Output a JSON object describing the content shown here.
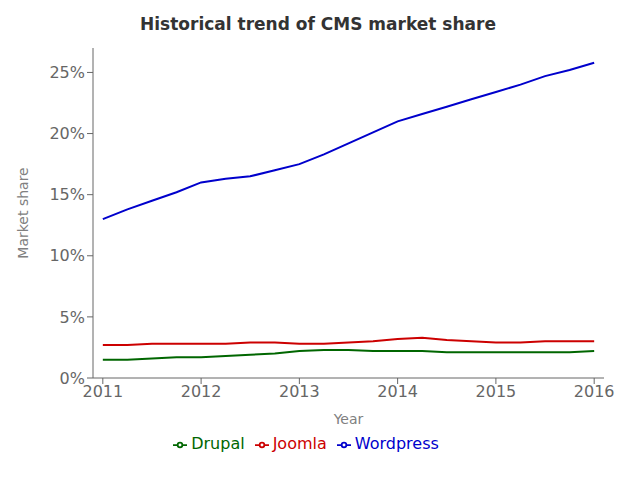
{
  "chart_data": {
    "type": "line",
    "title": "Historical trend of CMS market share",
    "xlabel": "Year",
    "ylabel": "Market share",
    "x": [
      2011,
      2011.25,
      2011.5,
      2011.75,
      2012,
      2012.25,
      2012.5,
      2012.75,
      2013,
      2013.25,
      2013.5,
      2013.75,
      2014,
      2014.25,
      2014.5,
      2014.75,
      2015,
      2015.25,
      2015.5,
      2015.75,
      2016
    ],
    "series": [
      {
        "name": "Wordpress",
        "color": "#0000cc",
        "values": [
          0.13,
          0.138,
          0.145,
          0.152,
          0.16,
          0.163,
          0.165,
          0.17,
          0.175,
          0.183,
          0.192,
          0.201,
          0.21,
          0.216,
          0.222,
          0.228,
          0.234,
          0.24,
          0.247,
          0.252,
          0.258
        ]
      },
      {
        "name": "Joomla",
        "color": "#cc0000",
        "values": [
          0.027,
          0.027,
          0.028,
          0.028,
          0.028,
          0.028,
          0.029,
          0.029,
          0.028,
          0.028,
          0.029,
          0.03,
          0.032,
          0.033,
          0.031,
          0.03,
          0.029,
          0.029,
          0.03,
          0.03,
          0.03
        ]
      },
      {
        "name": "Drupal",
        "color": "#006600",
        "values": [
          0.015,
          0.015,
          0.016,
          0.017,
          0.017,
          0.018,
          0.019,
          0.02,
          0.022,
          0.023,
          0.023,
          0.022,
          0.022,
          0.022,
          0.021,
          0.021,
          0.021,
          0.021,
          0.021,
          0.021,
          0.022
        ]
      }
    ],
    "xlim": [
      2010.9,
      2016.1
    ],
    "xticks": [
      2011,
      2012,
      2013,
      2014,
      2015,
      2016
    ],
    "ylim": [
      0,
      0.27
    ],
    "yticks": [
      {
        "value": 0.0,
        "label": "0%"
      },
      {
        "value": 0.05,
        "label": "5%"
      },
      {
        "value": 0.1,
        "label": "10%"
      },
      {
        "value": 0.15,
        "label": "15%"
      },
      {
        "value": 0.2,
        "label": "20%"
      },
      {
        "value": 0.25,
        "label": "25%"
      }
    ],
    "grid": false,
    "legend": "bottom"
  }
}
